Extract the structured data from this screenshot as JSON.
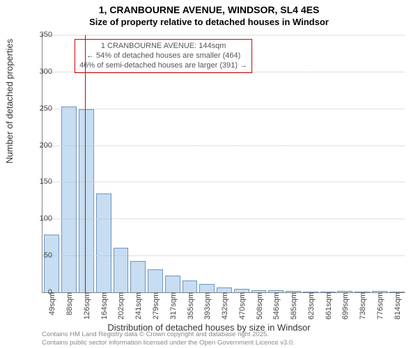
{
  "title": {
    "main": "1, CRANBOURNE AVENUE, WINDSOR, SL4 4ES",
    "sub": "Size of property relative to detached houses in Windsor"
  },
  "chart": {
    "type": "histogram",
    "ylabel": "Number of detached properties",
    "xlabel": "Distribution of detached houses by size in Windsor",
    "ylim": [
      0,
      350
    ],
    "ytick_step": 50,
    "background_color": "#ffffff",
    "grid_color": "#c0c0c0",
    "axis_color": "#808080",
    "bar_color": "#c7ddf2",
    "bar_border_color": "#6f95bd",
    "bar_width": 0.8,
    "categories": [
      "49sqm",
      "88sqm",
      "126sqm",
      "164sqm",
      "202sqm",
      "241sqm",
      "279sqm",
      "317sqm",
      "355sqm",
      "393sqm",
      "432sqm",
      "470sqm",
      "508sqm",
      "546sqm",
      "585sqm",
      "623sqm",
      "661sqm",
      "699sqm",
      "738sqm",
      "776sqm",
      "814sqm"
    ],
    "values": [
      78,
      252,
      248,
      133,
      60,
      42,
      30,
      22,
      15,
      10,
      6,
      4,
      2,
      2,
      1,
      0,
      0,
      1,
      0,
      1,
      0
    ],
    "reference": {
      "bin_index": 2,
      "position_in_bin": 0.47,
      "color": "#d00000"
    },
    "annotation": {
      "lines": [
        "1 CRANBOURNE AVENUE: 144sqm",
        "← 54% of detached houses are smaller (464)",
        "46% of semi-detached houses are larger (391) →"
      ],
      "border_color": "#d00000",
      "text_color": "#555555",
      "fontsize": 11
    },
    "tick_fontsize": 11,
    "label_fontsize": 13,
    "title_fontsize": 14
  },
  "attribution": {
    "lines": [
      "Contains HM Land Registry data © Crown copyright and database right 2025.",
      "Contains public sector information licensed under the Open Government Licence v3.0."
    ],
    "color": "#888888",
    "fontsize": 9.5
  }
}
